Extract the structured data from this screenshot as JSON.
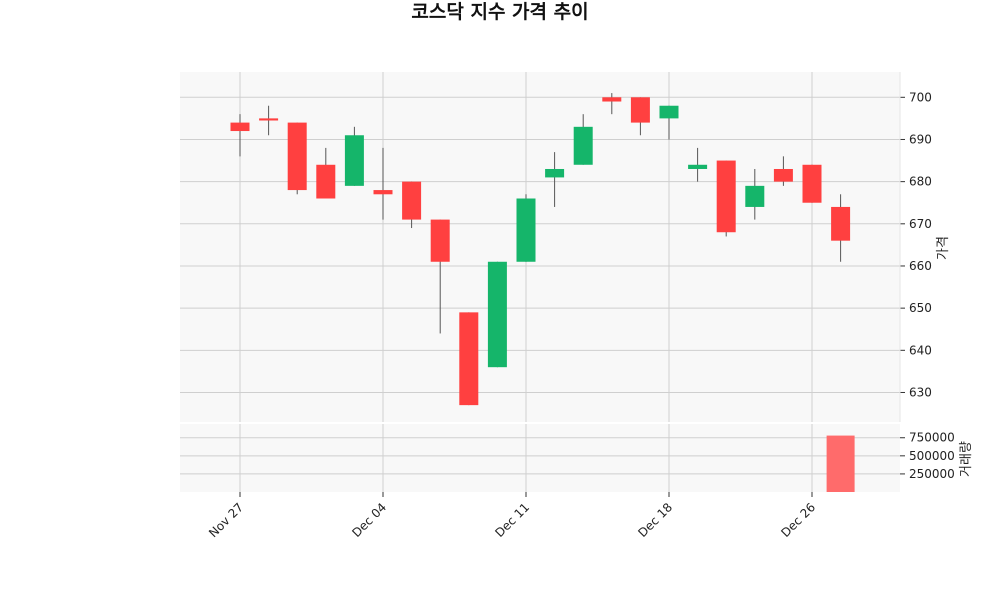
{
  "title": "코스닥 지수 가격 추이",
  "chart_data": {
    "type": "candlestick",
    "title": "코스닥 지수 가격 추이",
    "price_axis_label": "가격",
    "volume_axis_label": "거래량",
    "price_ylim": [
      623,
      706
    ],
    "price_ticks": [
      630,
      640,
      650,
      660,
      670,
      680,
      690,
      700
    ],
    "volume_ylim": [
      0,
      940000
    ],
    "volume_ticks": [
      250000,
      500000,
      750000
    ],
    "x_tick_labels": [
      {
        "index": 0,
        "label": "Nov 27"
      },
      {
        "index": 5,
        "label": "Dec 04"
      },
      {
        "index": 10,
        "label": "Dec 11"
      },
      {
        "index": 15,
        "label": "Dec 18"
      },
      {
        "index": 20,
        "label": "Dec 26"
      }
    ],
    "up_color": "#ff4040",
    "down_color": "#15b56a",
    "grid": true,
    "candles": [
      {
        "open": 692,
        "high": 696,
        "low": 686,
        "close": 694
      },
      {
        "open": 694.5,
        "high": 698,
        "low": 691,
        "close": 695
      },
      {
        "open": 678,
        "high": 694,
        "low": 677,
        "close": 694
      },
      {
        "open": 676,
        "high": 688,
        "low": 676,
        "close": 684
      },
      {
        "open": 691,
        "high": 693,
        "low": 679,
        "close": 679
      },
      {
        "open": 677,
        "high": 688,
        "low": 671,
        "close": 678
      },
      {
        "open": 671,
        "high": 680,
        "low": 669,
        "close": 680
      },
      {
        "open": 661,
        "high": 671,
        "low": 644,
        "close": 671
      },
      {
        "open": 627,
        "high": 649,
        "low": 627,
        "close": 649
      },
      {
        "open": 661,
        "high": 661,
        "low": 636,
        "close": 636
      },
      {
        "open": 676,
        "high": 677,
        "low": 661,
        "close": 661
      },
      {
        "open": 683,
        "high": 687,
        "low": 674,
        "close": 681
      },
      {
        "open": 693,
        "high": 696,
        "low": 684,
        "close": 684
      },
      {
        "open": 699,
        "high": 701,
        "low": 696,
        "close": 700
      },
      {
        "open": 694,
        "high": 700,
        "low": 691,
        "close": 700
      },
      {
        "open": 698,
        "high": 698,
        "low": 690,
        "close": 695
      },
      {
        "open": 684,
        "high": 688,
        "low": 680,
        "close": 683
      },
      {
        "open": 668,
        "high": 685,
        "low": 667,
        "close": 685
      },
      {
        "open": 679,
        "high": 683,
        "low": 671,
        "close": 674
      },
      {
        "open": 680,
        "high": 686,
        "low": 679,
        "close": 683
      },
      {
        "open": 675,
        "high": 684,
        "low": 675,
        "close": 684
      },
      {
        "open": 666,
        "high": 677,
        "low": 661,
        "close": 674
      }
    ],
    "volume": [
      0,
      0,
      0,
      0,
      0,
      0,
      0,
      0,
      0,
      0,
      0,
      0,
      0,
      0,
      0,
      0,
      0,
      0,
      0,
      0,
      0,
      780000
    ]
  }
}
